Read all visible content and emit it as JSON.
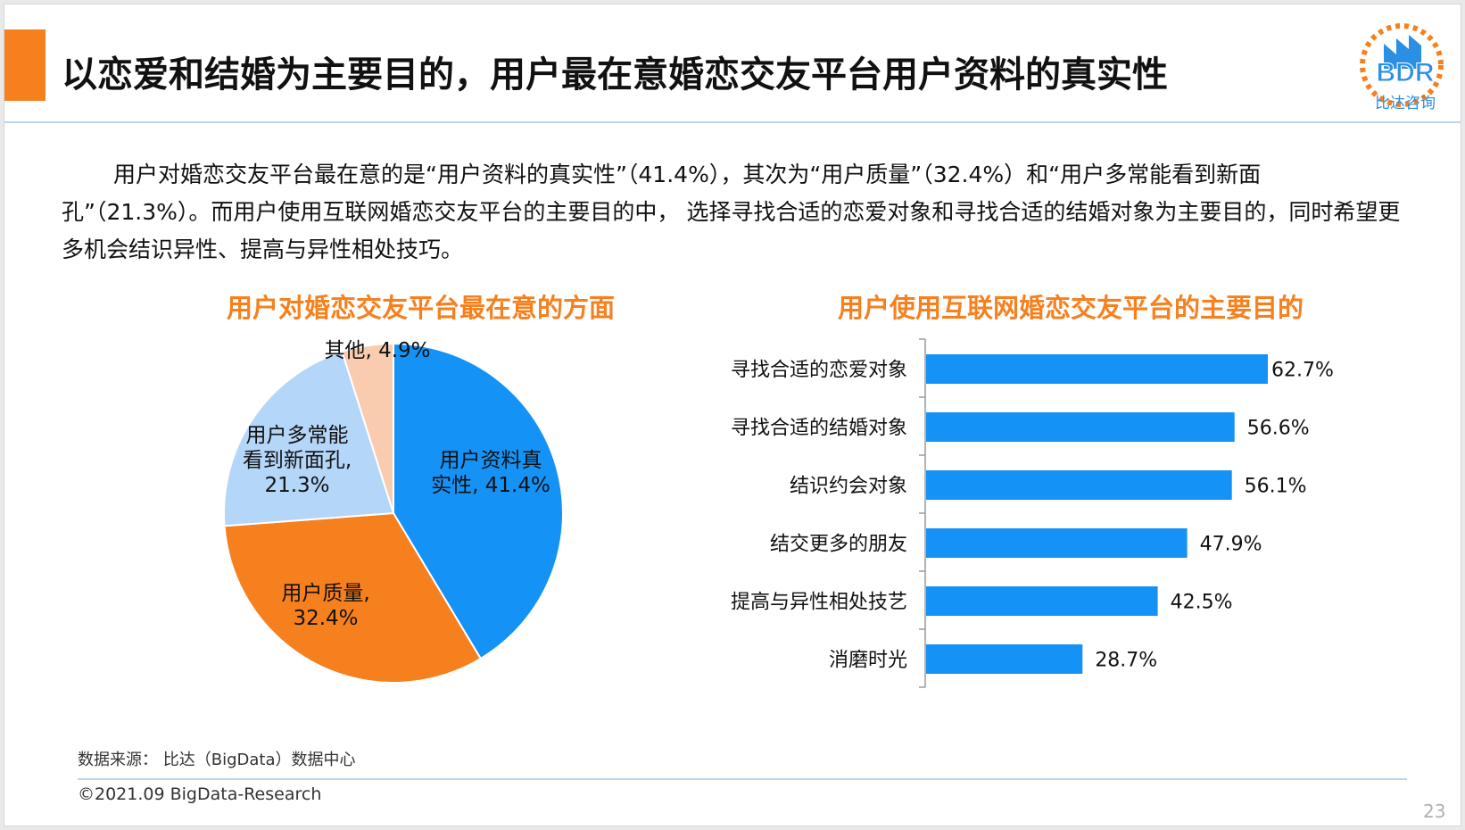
{
  "header": {
    "title": "以恋爱和结婚为主要目的，用户最在意婚恋交友平台用户资料的真实性",
    "logo_text": "BDR",
    "logo_sub": "比达咨询"
  },
  "summary": {
    "text": "用户对婚恋交友平台最在意的是“用户资料的真实性”（41.4%），其次为“用户质量”（32.4%）和“用户多常能看到新面孔”（21.3%）。而用户使用互联网婚恋交友平台的主要目的中， 选择寻找合适的恋爱对象和寻找合适的结婚对象为主要目的，同时希望更多机会结识异性、提高与异性相处技巧。"
  },
  "colors": {
    "accent": "#f7801e",
    "blue": "#1592f5",
    "light_blue": "#b4d6f8",
    "peach": "#f9ccb0",
    "grid_line": "#b9d7ec"
  },
  "chart_data": [
    {
      "type": "pie",
      "title": "用户对婚恋交友平台最在意的方面",
      "slices": [
        {
          "label": [
            "用户资料真",
            "实性, 41.4%"
          ],
          "value": 41.4,
          "color": "#1592f5"
        },
        {
          "label": [
            "用户质量,",
            "32.4%"
          ],
          "value": 32.4,
          "color": "#f7801e"
        },
        {
          "label": [
            "用户多常能",
            "看到新面孔,",
            "21.3%"
          ],
          "value": 21.3,
          "color": "#b4d6f8"
        },
        {
          "label": [
            "其他, 4.9%"
          ],
          "value": 4.9,
          "color": "#f9ccb0"
        }
      ]
    },
    {
      "type": "bar",
      "orientation": "horizontal",
      "title": "用户使用互联网婚恋交友平台的主要目的",
      "categories": [
        "寻找合适的恋爱对象",
        "寻找合适的结婚对象",
        "结识约会对象",
        "结交更多的朋友",
        "提高与异性相处技艺",
        "消磨时光"
      ],
      "values": [
        62.7,
        56.6,
        56.1,
        47.9,
        42.5,
        28.7
      ],
      "value_labels": [
        "62.7%",
        "56.6%",
        "56.1%",
        "47.9%",
        "42.5%",
        "28.7%"
      ],
      "color": "#1592f5"
    }
  ],
  "footer": {
    "source": "数据来源： 比达（BigData）数据中心",
    "copyright": "©2021.09 BigData-Research",
    "page_number": "23"
  }
}
